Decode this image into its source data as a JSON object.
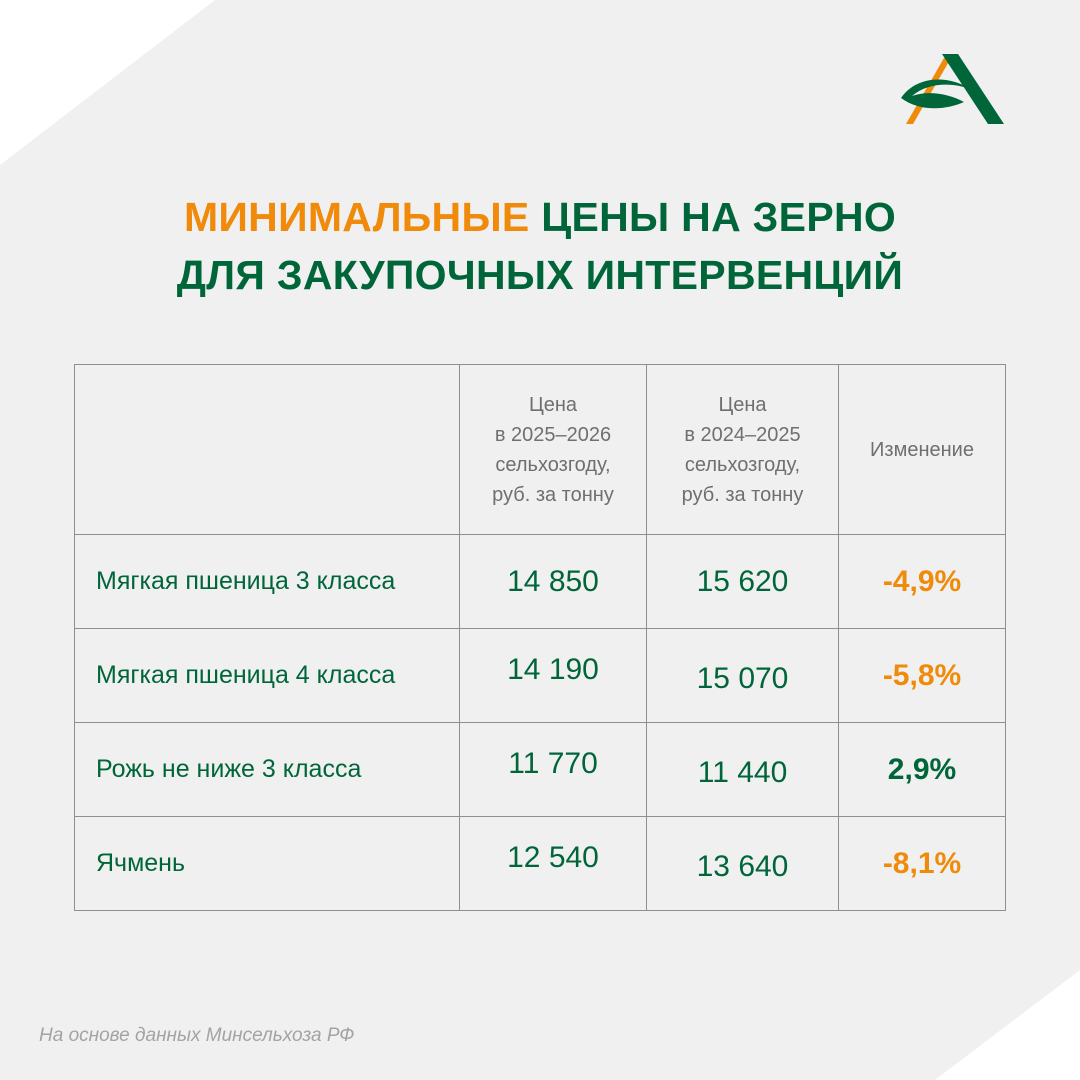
{
  "title": {
    "accent": "МИНИМАЛЬНЫЕ",
    "rest_line1": " ЦЕНЫ НА ЗЕРНО",
    "line2": "ДЛЯ ЗАКУПОЧНЫХ ИНТЕРВЕНЦИЙ"
  },
  "table": {
    "headers": [
      "",
      "Цена\nв 2025–2026\nсельхозгоду,\nруб. за тонну",
      "Цена\nв 2024–2025\nсельхозгоду,\nруб. за тонну",
      "Изменение"
    ],
    "rows": [
      {
        "name": "Мягкая пшеница 3 класса",
        "price_2025": "14 850",
        "price_2024": "15 620",
        "change": "-4,9%"
      },
      {
        "name": "Мягкая пшеница 4 класса",
        "price_2025": "14 190",
        "price_2024": "15 070",
        "change": "-5,8%"
      },
      {
        "name": "Рожь не ниже 3 класса",
        "price_2025": "11 770",
        "price_2024": "11 440",
        "change": "2,9%"
      },
      {
        "name": "Ячмень",
        "price_2025": "12 540",
        "price_2024": "13 640",
        "change": "-8,1%"
      }
    ]
  },
  "footnote": "На основе данных Минсельхоза РФ",
  "colors": {
    "green": "#00663a",
    "orange": "#f08a0a",
    "background": "#f0f0f0",
    "footnote": "#a3a3a3"
  },
  "icons": {
    "logo": "logo-a-mark"
  }
}
